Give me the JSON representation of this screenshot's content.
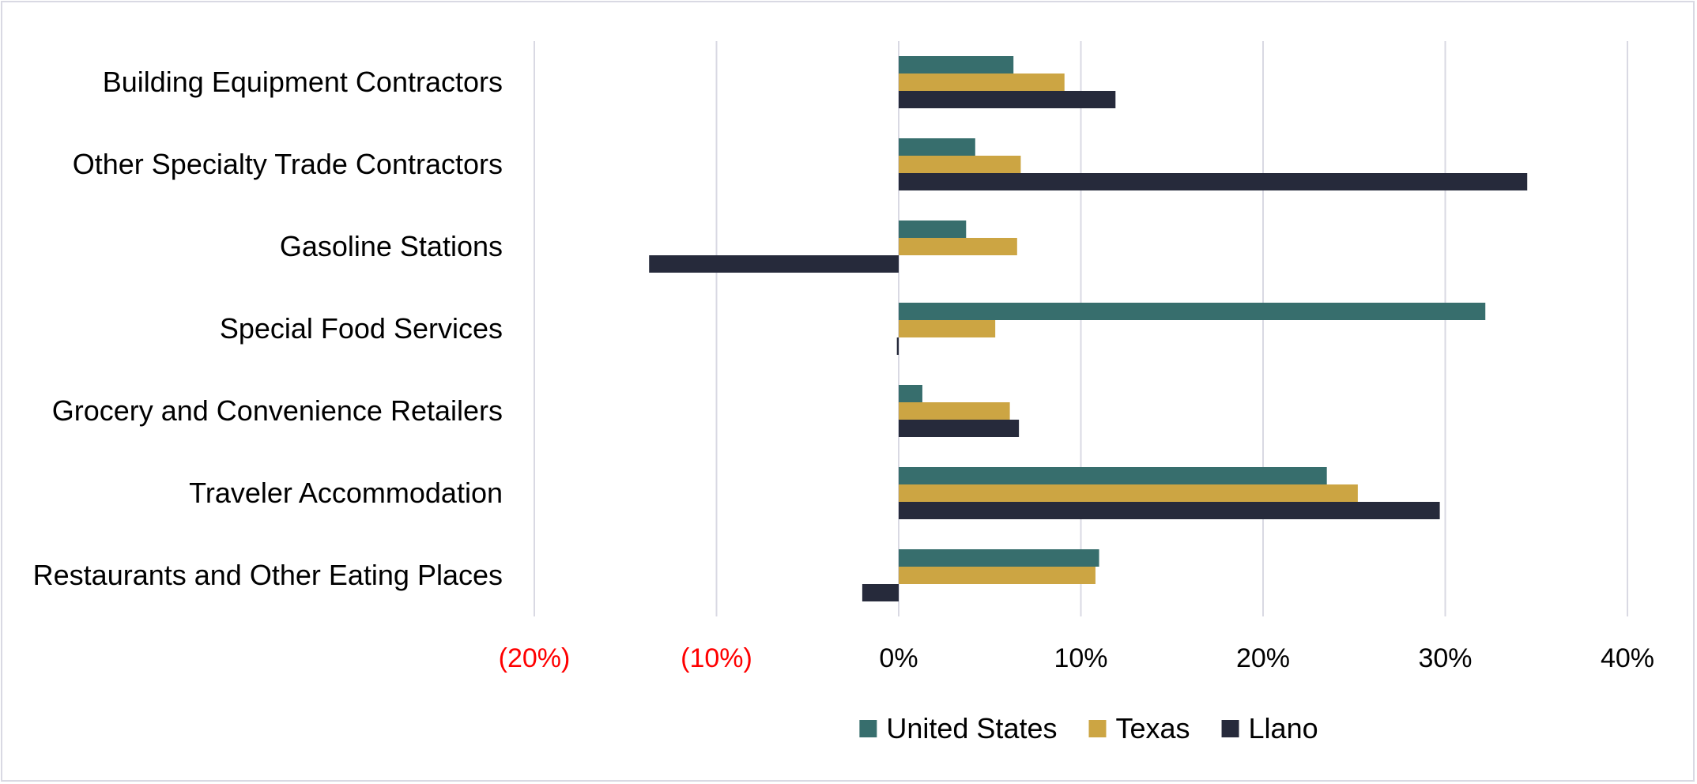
{
  "chart_data": {
    "type": "bar",
    "orientation": "horizontal",
    "categories": [
      "Building Equipment Contractors",
      "Other Specialty Trade Contractors",
      "Gasoline Stations",
      "Special Food Services",
      "Grocery and Convenience Retailers",
      "Traveler Accommodation",
      "Restaurants and Other Eating Places"
    ],
    "series": [
      {
        "name": "United States",
        "color": "#376e6d",
        "values": [
          6.3,
          4.2,
          3.7,
          32.2,
          1.3,
          23.5,
          11.0
        ]
      },
      {
        "name": "Texas",
        "color": "#cca543",
        "values": [
          9.1,
          6.7,
          6.5,
          5.3,
          6.1,
          25.2,
          10.8
        ]
      },
      {
        "name": "Llano",
        "color": "#262a3b",
        "values": [
          11.9,
          34.5,
          -13.7,
          -0.1,
          6.6,
          29.7,
          -2.0
        ]
      }
    ],
    "xlim": [
      -20,
      40
    ],
    "xticks": [
      {
        "value": -20,
        "label": "(20%)",
        "negative": true
      },
      {
        "value": -10,
        "label": "(10%)",
        "negative": true
      },
      {
        "value": 0,
        "label": "0%",
        "negative": false
      },
      {
        "value": 10,
        "label": "10%",
        "negative": false
      },
      {
        "value": 20,
        "label": "20%",
        "negative": false
      },
      {
        "value": 30,
        "label": "30%",
        "negative": false
      },
      {
        "value": 40,
        "label": "40%",
        "negative": false
      }
    ],
    "grid": true,
    "legend_position": "bottom",
    "negative_tick_color": "#ff0000",
    "gridline_color": "#d9d9e3"
  }
}
